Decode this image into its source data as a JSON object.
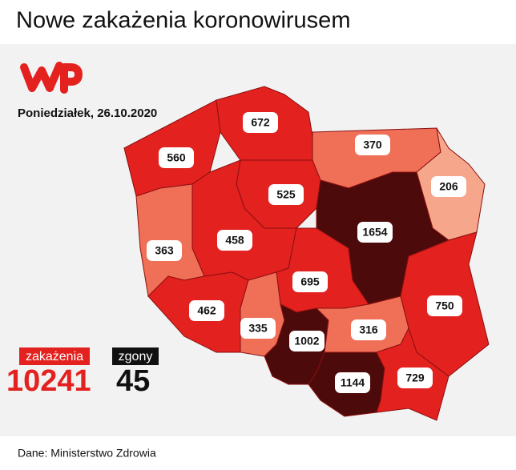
{
  "header": {
    "title": "Nowe zakażenia koronowirusem"
  },
  "date": "Poniedziałek, 26.10.2020",
  "regions": [
    {
      "value": 560,
      "color": "#e3211f"
    },
    {
      "value": 672,
      "color": "#e3211f"
    },
    {
      "value": 370,
      "color": "#ef6f57"
    },
    {
      "value": 206,
      "color": "#f6a68b"
    },
    {
      "value": 525,
      "color": "#e3211f"
    },
    {
      "value": 1654,
      "color": "#4d0a0a"
    },
    {
      "value": 458,
      "color": "#e3211f"
    },
    {
      "value": 363,
      "color": "#ef6f57"
    },
    {
      "value": 695,
      "color": "#e3211f"
    },
    {
      "value": 750,
      "color": "#e3211f"
    },
    {
      "value": 462,
      "color": "#e3211f"
    },
    {
      "value": 335,
      "color": "#ef6f57"
    },
    {
      "value": 1002,
      "color": "#4d0a0a"
    },
    {
      "value": 316,
      "color": "#ef6f57"
    },
    {
      "value": 1144,
      "color": "#4d0a0a"
    },
    {
      "value": 729,
      "color": "#e3211f"
    }
  ],
  "totals": {
    "cases_label": "zakażenia",
    "cases": 10241,
    "deaths_label": "zgony",
    "deaths": 45
  },
  "source": "Dane: Ministerstwo Zdrowia"
}
